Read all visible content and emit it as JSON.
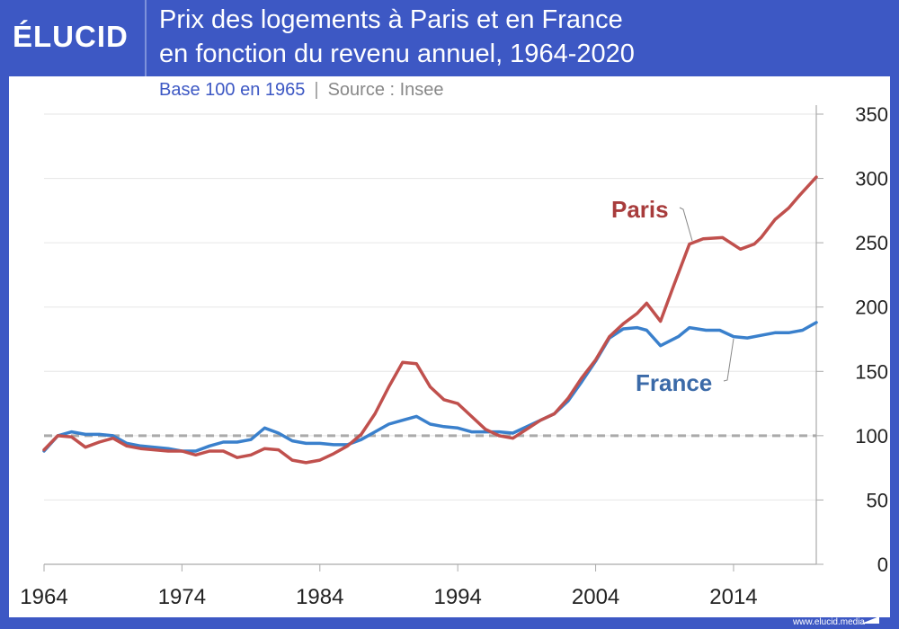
{
  "brand": {
    "logo": "ÉLUCID",
    "footer": "www.elucid.media"
  },
  "header": {
    "title_line1": "Prix des logements à Paris et en France",
    "title_line2": "en fonction du revenu annuel, 1964-2020"
  },
  "subtitle": {
    "base": "Base 100 en 1965",
    "separator": "|",
    "source": "Source : Insee"
  },
  "colors": {
    "frame": "#3d58c4",
    "paris": "#c0504d",
    "france": "#3a80cc",
    "paris_label": "#a83c3c",
    "france_label": "#3b6aa8"
  },
  "chart_data": {
    "type": "line",
    "title": "Prix des logements à Paris et en France en fonction du revenu annuel, 1964-2020",
    "xlim": [
      1964,
      2020
    ],
    "ylim": [
      0,
      350
    ],
    "x_ticks": [
      "1964",
      "1974",
      "1984",
      "1994",
      "2004",
      "2014"
    ],
    "y_ticks": [
      "0",
      "50",
      "100",
      "150",
      "200",
      "250",
      "300",
      "350"
    ],
    "y_axis_side": "right",
    "grid": true,
    "reference_line": {
      "y": 100,
      "style": "dashed"
    },
    "series": [
      {
        "name": "Paris",
        "points": [
          [
            1964,
            89
          ],
          [
            1965,
            100
          ],
          [
            1966,
            99
          ],
          [
            1967,
            91
          ],
          [
            1968,
            95
          ],
          [
            1969,
            98
          ],
          [
            1970,
            92
          ],
          [
            1971,
            90
          ],
          [
            1972,
            89
          ],
          [
            1973,
            88
          ],
          [
            1974,
            88
          ],
          [
            1975,
            85
          ],
          [
            1976,
            88
          ],
          [
            1977,
            88
          ],
          [
            1978,
            83
          ],
          [
            1979,
            85
          ],
          [
            1980,
            90
          ],
          [
            1981,
            89
          ],
          [
            1982,
            81
          ],
          [
            1983,
            79
          ],
          [
            1984,
            81
          ],
          [
            1985,
            86
          ],
          [
            1986,
            92
          ],
          [
            1987,
            101
          ],
          [
            1988,
            117
          ],
          [
            1989,
            138
          ],
          [
            1990,
            157
          ],
          [
            1991,
            156
          ],
          [
            1992,
            138
          ],
          [
            1993,
            128
          ],
          [
            1994,
            125
          ],
          [
            1995,
            115
          ],
          [
            1996,
            105
          ],
          [
            1997,
            100
          ],
          [
            1998,
            98
          ],
          [
            1999,
            105
          ],
          [
            2000,
            112
          ],
          [
            2001,
            117
          ],
          [
            2002,
            129
          ],
          [
            2003,
            145
          ],
          [
            2004,
            159
          ],
          [
            2005,
            177
          ],
          [
            2006,
            187
          ],
          [
            2007,
            195
          ],
          [
            2007.7,
            203
          ],
          [
            2008.7,
            189
          ],
          [
            2009.6,
            215
          ],
          [
            2010.8,
            249
          ],
          [
            2011.8,
            253
          ],
          [
            2013.2,
            254
          ],
          [
            2014.5,
            245
          ],
          [
            2015.5,
            249
          ],
          [
            2016,
            254
          ],
          [
            2017,
            268
          ],
          [
            2018,
            277
          ],
          [
            2018.8,
            287
          ],
          [
            2020,
            301
          ]
        ]
      },
      {
        "name": "France",
        "points": [
          [
            1964,
            88
          ],
          [
            1965,
            100
          ],
          [
            1966,
            103
          ],
          [
            1967,
            101
          ],
          [
            1968,
            101
          ],
          [
            1969,
            100
          ],
          [
            1970,
            94
          ],
          [
            1971,
            92
          ],
          [
            1972,
            91
          ],
          [
            1973,
            90
          ],
          [
            1974,
            88
          ],
          [
            1975,
            88
          ],
          [
            1976,
            92
          ],
          [
            1977,
            95
          ],
          [
            1978,
            95
          ],
          [
            1979,
            97
          ],
          [
            1980,
            106
          ],
          [
            1981,
            102
          ],
          [
            1982,
            96
          ],
          [
            1983,
            94
          ],
          [
            1984,
            94
          ],
          [
            1985,
            93
          ],
          [
            1986,
            93
          ],
          [
            1987,
            97
          ],
          [
            1988,
            103
          ],
          [
            1989,
            109
          ],
          [
            1990,
            112
          ],
          [
            1991,
            115
          ],
          [
            1992,
            109
          ],
          [
            1993,
            107
          ],
          [
            1994,
            106
          ],
          [
            1995,
            103
          ],
          [
            1996,
            103
          ],
          [
            1997,
            103
          ],
          [
            1998,
            102
          ],
          [
            1999,
            107
          ],
          [
            2000,
            112
          ],
          [
            2001,
            117
          ],
          [
            2002,
            127
          ],
          [
            2003,
            142
          ],
          [
            2004,
            158
          ],
          [
            2005,
            176
          ],
          [
            2006,
            183
          ],
          [
            2007,
            184
          ],
          [
            2007.7,
            182
          ],
          [
            2008.7,
            170
          ],
          [
            2010,
            177
          ],
          [
            2010.8,
            184
          ],
          [
            2012,
            182
          ],
          [
            2013,
            182
          ],
          [
            2014,
            177
          ],
          [
            2015,
            176
          ],
          [
            2016,
            178
          ],
          [
            2017,
            180
          ],
          [
            2018,
            180
          ],
          [
            2019,
            182
          ],
          [
            2020,
            188
          ]
        ]
      }
    ]
  }
}
